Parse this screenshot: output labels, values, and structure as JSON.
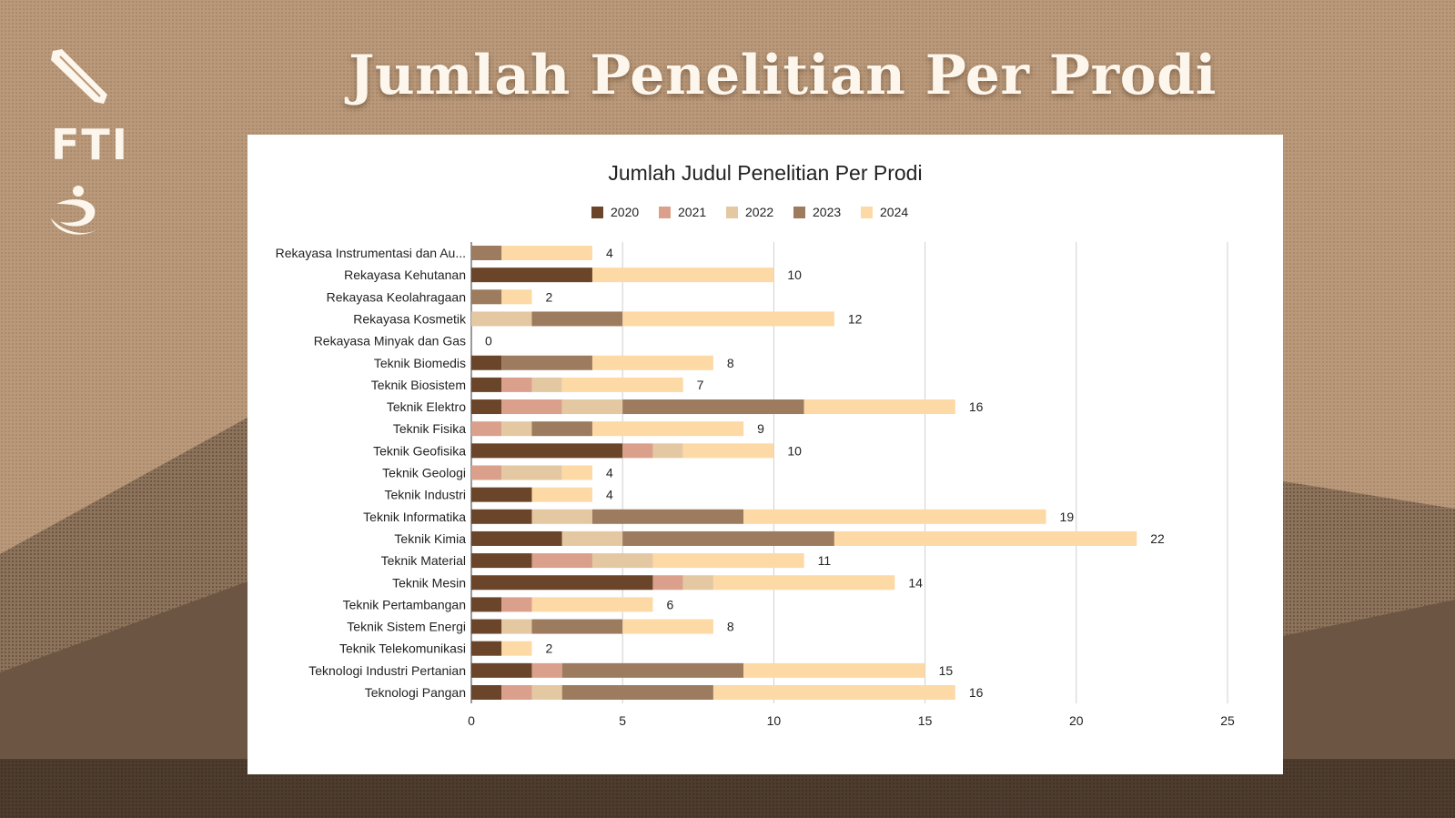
{
  "slide": {
    "title": "Jumlah Penelitian Per Prodi",
    "logo_text": "FTI"
  },
  "colors": {
    "background": "#b9997a",
    "s2020": "#6b4529",
    "s2021": "#dba08c",
    "s2022": "#e4c8a2",
    "s2023": "#9c7b5e",
    "s2024": "#fdd9a6"
  },
  "icons": [
    "pen-nib-icon",
    "fti-wordmark",
    "figure-swirl-icon"
  ],
  "chart_data": {
    "type": "bar",
    "orientation": "horizontal",
    "stacked": true,
    "title": "Jumlah Judul Penelitian Per Prodi",
    "legend_position": "top",
    "grid": true,
    "xlim": [
      0,
      25
    ],
    "xticks": [
      0,
      5,
      10,
      15,
      20,
      25
    ],
    "categories": [
      "Rekayasa Instrumentasi dan Au...",
      "Rekayasa Kehutanan",
      "Rekayasa Keolahragaan",
      "Rekayasa Kosmetik",
      "Rekayasa Minyak dan Gas",
      "Teknik Biomedis",
      "Teknik Biosistem",
      "Teknik Elektro",
      "Teknik Fisika",
      "Teknik Geofisika",
      "Teknik Geologi",
      "Teknik Industri",
      "Teknik Informatika",
      "Teknik Kimia",
      "Teknik Material",
      "Teknik Mesin",
      "Teknik Pertambangan",
      "Teknik Sistem Energi",
      "Teknik Telekomunikasi",
      "Teknologi Industri Pertanian",
      "Teknologi Pangan"
    ],
    "series": [
      {
        "name": "2020",
        "color": "#6b4529",
        "values": [
          0,
          4,
          0,
          0,
          0,
          1,
          1,
          1,
          0,
          5,
          0,
          2,
          2,
          3,
          2,
          6,
          1,
          1,
          1,
          2,
          1
        ]
      },
      {
        "name": "2021",
        "color": "#dba08c",
        "values": [
          0,
          0,
          0,
          0,
          0,
          0,
          1,
          2,
          1,
          1,
          1,
          0,
          0,
          0,
          2,
          1,
          1,
          0,
          0,
          1,
          1
        ]
      },
      {
        "name": "2022",
        "color": "#e4c8a2",
        "values": [
          0,
          0,
          0,
          2,
          0,
          0,
          1,
          2,
          1,
          1,
          2,
          0,
          2,
          2,
          2,
          1,
          0,
          1,
          0,
          0,
          1
        ]
      },
      {
        "name": "2023",
        "color": "#9c7b5e",
        "values": [
          1,
          0,
          1,
          3,
          0,
          3,
          0,
          6,
          2,
          0,
          0,
          0,
          5,
          7,
          0,
          0,
          0,
          3,
          0,
          6,
          5
        ]
      },
      {
        "name": "2024",
        "color": "#fdd9a6",
        "values": [
          3,
          6,
          1,
          7,
          0,
          4,
          4,
          5,
          5,
          3,
          1,
          2,
          10,
          10,
          5,
          6,
          4,
          3,
          1,
          6,
          8
        ]
      }
    ],
    "totals": [
      4,
      10,
      2,
      12,
      0,
      8,
      7,
      16,
      9,
      10,
      4,
      4,
      19,
      22,
      11,
      14,
      6,
      8,
      2,
      15,
      16
    ]
  }
}
